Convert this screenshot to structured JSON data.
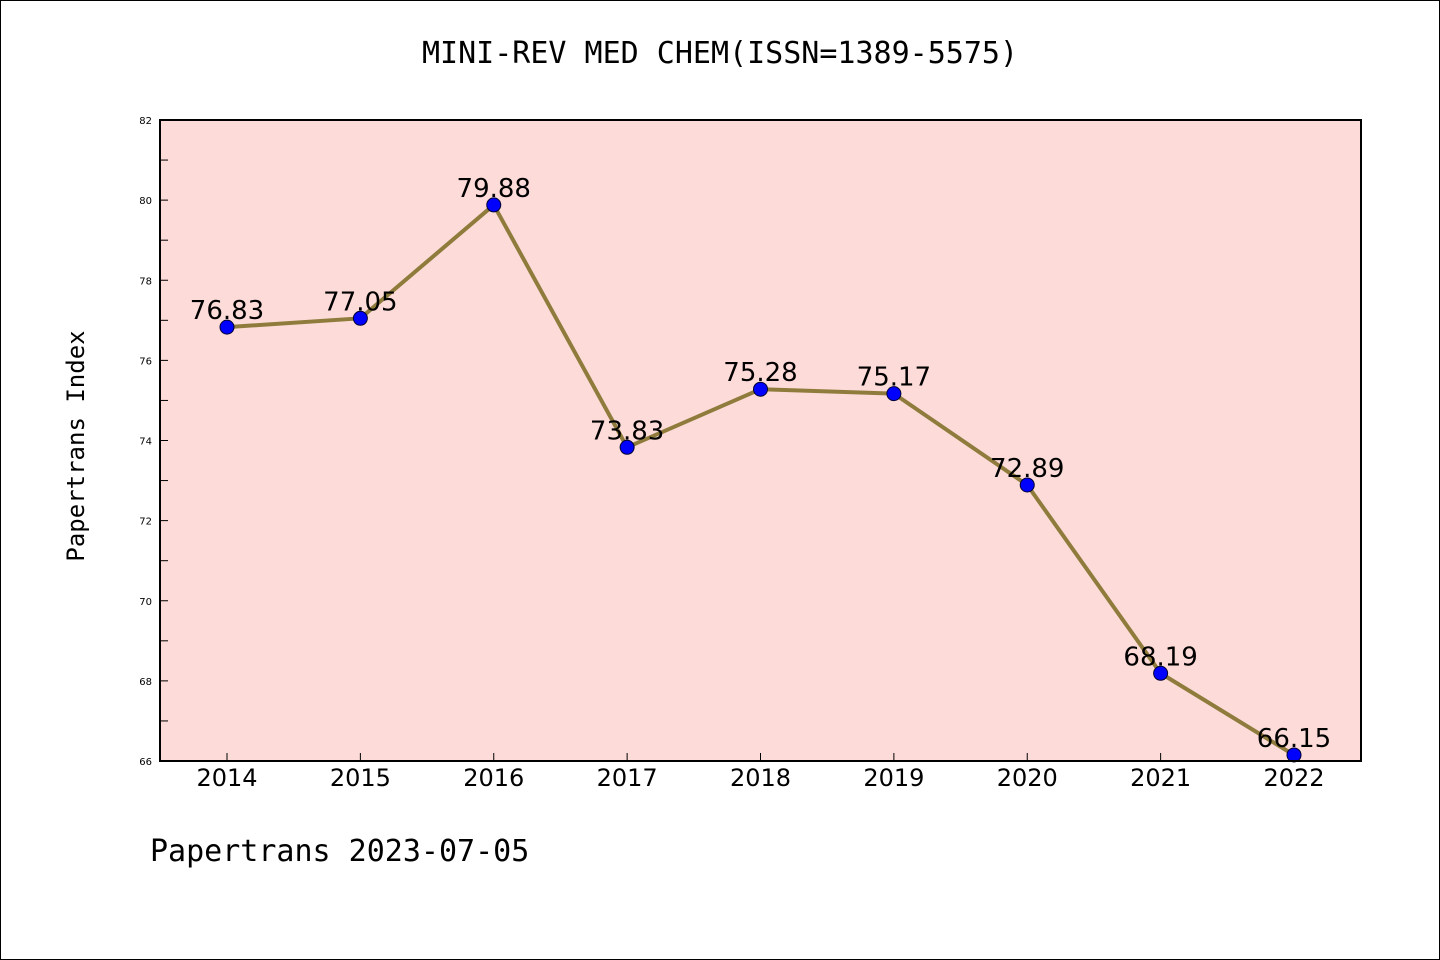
{
  "title": "MINI-REV MED CHEM(ISSN=1389-5575)",
  "footer": "Papertrans 2023-07-05",
  "chart_data": {
    "type": "line",
    "title": "MINI-REV MED CHEM(ISSN=1389-5575)",
    "xlabel": "",
    "ylabel": "Papertrans Index",
    "categories": [
      "2014",
      "2015",
      "2016",
      "2017",
      "2018",
      "2019",
      "2020",
      "2021",
      "2022"
    ],
    "series": [
      {
        "values": [
          76.83,
          77.05,
          79.88,
          73.83,
          75.28,
          75.17,
          72.89,
          68.19,
          66.15
        ],
        "data_labels": [
          "76.83",
          "77.05",
          "79.88",
          "73.83",
          "75.28",
          "75.17",
          "72.89",
          "68.19",
          "66.15"
        ]
      }
    ],
    "ylim": [
      66,
      82
    ],
    "yticks": [
      "66",
      "68",
      "70",
      "72",
      "74",
      "76",
      "78",
      "80",
      "82"
    ],
    "grid": false,
    "legend": "none",
    "colors": {
      "plot_background": "#fddbd8",
      "line": "#8f7c3c",
      "marker": "#0000ff"
    }
  }
}
